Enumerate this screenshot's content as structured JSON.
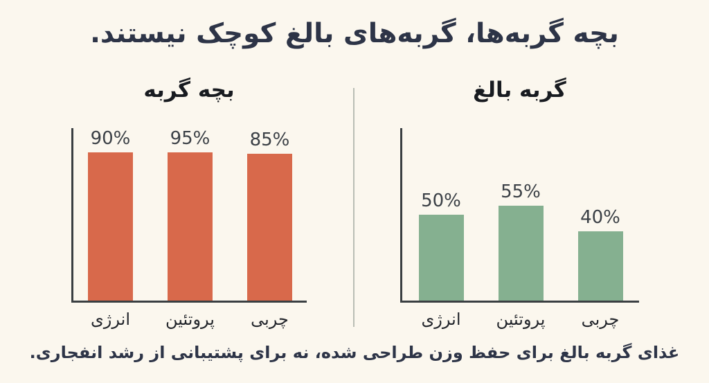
{
  "page": {
    "title": "بچه گربه‌ها، گربه‌های بالغ کوچک نیستند.",
    "caption": "غذای گربه بالغ برای حفظ وزن طراحی شده، نه برای پشتیبانی از رشد انفجاری.",
    "colors": {
      "background": "#FBF7EE",
      "title_text": "#2D3447",
      "axis": "#3A3F42",
      "divider": "#B9BDB4",
      "kitten_bar": "#D8694B",
      "adult_bar": "#85B090"
    }
  },
  "chart_data": [
    {
      "type": "bar",
      "title": "بچه گربه",
      "categories": [
        "انرژی",
        "پروتئین",
        "چربی"
      ],
      "values": [
        90,
        95,
        85
      ],
      "value_labels": [
        "90%",
        "95%",
        "85%"
      ],
      "bar_color": "#D8694B",
      "ylim": [
        0,
        100
      ],
      "grid": false,
      "legend": false
    },
    {
      "type": "bar",
      "title": "گربه بالغ",
      "categories": [
        "انرژی",
        "پروتئین",
        "چربی"
      ],
      "values": [
        50,
        55,
        40
      ],
      "value_labels": [
        "50%",
        "55%",
        "40%"
      ],
      "bar_color": "#85B090",
      "ylim": [
        0,
        100
      ],
      "grid": false,
      "legend": false
    }
  ]
}
